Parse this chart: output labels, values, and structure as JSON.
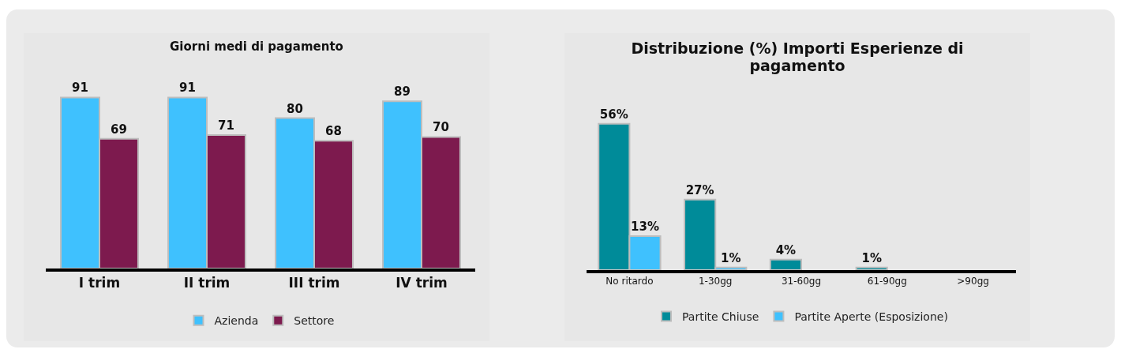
{
  "chart_data": [
    {
      "type": "bar",
      "title": "Giorni medi di pagamento",
      "categories": [
        "I trim",
        "II trim",
        "III trim",
        "IV trim"
      ],
      "series": [
        {
          "name": "Azienda",
          "color": "#3fc1fe",
          "values": [
            91,
            91,
            80,
            89
          ]
        },
        {
          "name": "Settore",
          "color": "#7d1a4e",
          "values": [
            69,
            71,
            68,
            70
          ]
        }
      ],
      "data_labels": true,
      "legend": "bottom"
    },
    {
      "type": "bar",
      "title": "Distribuzione (%) Importi Esperienze di pagamento",
      "categories": [
        "No ritardo",
        "1-30gg",
        "31-60gg",
        "61-90gg",
        ">90gg"
      ],
      "series": [
        {
          "name": "Partite Chiuse",
          "color": "#008b99",
          "values": [
            56,
            27,
            4,
            1,
            null
          ],
          "value_labels": [
            "56%",
            "27%",
            "4%",
            "1%",
            null
          ]
        },
        {
          "name": "Partite Aperte (Esposizione)",
          "color": "#3fc1fe",
          "values": [
            13,
            1,
            null,
            null,
            null
          ],
          "value_labels": [
            "13%",
            "1%",
            null,
            null,
            null
          ]
        }
      ],
      "legend": "bottom"
    }
  ]
}
